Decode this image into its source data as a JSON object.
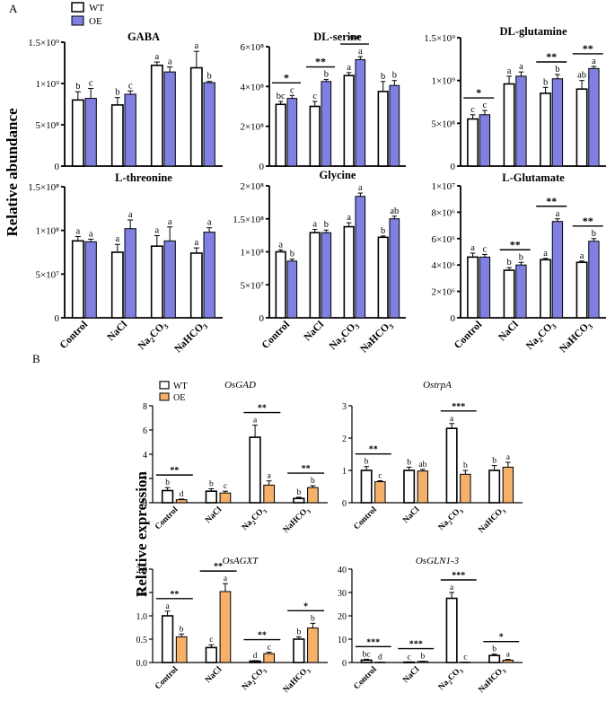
{
  "panel_labels": {
    "a": "A",
    "b": "B"
  },
  "legend_a": {
    "wt": "WT",
    "oe": "OE",
    "wt_color": "#ffffff",
    "oe_color": "#8080e0"
  },
  "legend_b": {
    "wt": "WT",
    "oe": "OE",
    "wt_color": "#ffffff",
    "oe_color": "#f5b06a"
  },
  "y_titles": {
    "panel_a": "Relative abundance",
    "panel_b": "Relative expression"
  },
  "chart_data": [
    {
      "id": "gaba",
      "type": "bar",
      "panel": "A",
      "title": "GABA",
      "categories": [
        "Control",
        "NaCl",
        "Na2CO3",
        "NaHCO3"
      ],
      "series": [
        {
          "name": "WT",
          "values": [
            800000000,
            740000000,
            1220000000,
            1190000000
          ],
          "errors": [
            100000000,
            90000000,
            40000000,
            200000000
          ]
        },
        {
          "name": "OE",
          "values": [
            820000000,
            870000000,
            1140000000,
            1010000000
          ],
          "errors": [
            120000000,
            40000000,
            60000000,
            15000000
          ]
        }
      ],
      "ylim": [
        0,
        1500000000
      ],
      "yticks": [
        0,
        500000000,
        1000000000,
        1500000000
      ],
      "yticklabels": [
        "0",
        "5×10⁸",
        "1×10⁹",
        "1.5×10⁹"
      ],
      "letters": [
        [
          "b",
          "c"
        ],
        [
          "b",
          "c"
        ],
        [
          "a",
          "a"
        ],
        [
          "a",
          "b"
        ]
      ],
      "sig": []
    },
    {
      "id": "dlserine",
      "type": "bar",
      "panel": "A",
      "title": "DL-serine",
      "categories": [
        "Control",
        "NaCl",
        "Na2CO3",
        "NaHCO3"
      ],
      "series": [
        {
          "name": "WT",
          "values": [
            310000000,
            300000000,
            455000000,
            375000000
          ],
          "errors": [
            15000000,
            25000000,
            15000000,
            50000000
          ]
        },
        {
          "name": "OE",
          "values": [
            340000000,
            425000000,
            535000000,
            405000000
          ],
          "errors": [
            15000000,
            10000000,
            15000000,
            25000000
          ]
        }
      ],
      "ylim": [
        0,
        600000000
      ],
      "yticks": [
        0,
        200000000,
        400000000,
        600000000
      ],
      "yticklabels": [
        "0",
        "2×10⁸",
        "4×10⁸",
        "6×10⁸"
      ],
      "letters": [
        [
          "bc",
          "c"
        ],
        [
          "c",
          "b"
        ],
        [
          "a",
          "a"
        ],
        [
          "b",
          "b"
        ]
      ],
      "sig": [
        [
          "*",
          0
        ],
        [
          "**",
          1
        ],
        [
          "**",
          2
        ]
      ]
    },
    {
      "id": "dlglutamine",
      "type": "bar",
      "panel": "A",
      "title": "DL-glutamine",
      "categories": [
        "Control",
        "NaCl",
        "Na2CO3",
        "NaHCO3"
      ],
      "series": [
        {
          "name": "WT",
          "values": [
            550000000,
            960000000,
            850000000,
            900000000
          ],
          "errors": [
            50000000,
            90000000,
            70000000,
            100000000
          ]
        },
        {
          "name": "OE",
          "values": [
            600000000,
            1050000000,
            1020000000,
            1140000000
          ],
          "errors": [
            50000000,
            50000000,
            50000000,
            25000000
          ]
        }
      ],
      "ylim": [
        0,
        1500000000
      ],
      "yticks": [
        0,
        500000000,
        1000000000,
        1500000000
      ],
      "yticklabels": [
        "0",
        "5×10⁸",
        "1×10⁹",
        "1.5×10⁹"
      ],
      "letters": [
        [
          "c",
          "c"
        ],
        [
          "a",
          "a"
        ],
        [
          "b",
          "b"
        ],
        [
          "ab",
          "a"
        ]
      ],
      "sig": [
        [
          "*",
          0
        ],
        [
          "**",
          2
        ],
        [
          "**",
          3
        ]
      ]
    },
    {
      "id": "lthreonine",
      "type": "bar",
      "panel": "A",
      "title": "L-threonine",
      "categories": [
        "Control",
        "NaCl",
        "Na2CO3",
        "NaHCO3"
      ],
      "series": [
        {
          "name": "WT",
          "values": [
            88000000,
            75000000,
            82000000,
            74000000
          ],
          "errors": [
            5000000,
            9000000,
            12000000,
            6000000
          ]
        },
        {
          "name": "OE",
          "values": [
            87000000,
            102000000,
            88000000,
            98000000
          ],
          "errors": [
            3000000,
            10000000,
            16000000,
            5000000
          ]
        }
      ],
      "ylim": [
        0,
        150000000
      ],
      "yticks": [
        0,
        50000000,
        100000000,
        150000000
      ],
      "yticklabels": [
        "0",
        "5×10⁷",
        "1×10⁸",
        "1.5×10⁸"
      ],
      "letters": [
        [
          "a",
          "a"
        ],
        [
          "a",
          "a"
        ],
        [
          "a",
          "a"
        ],
        [
          "a",
          "a"
        ]
      ],
      "sig": []
    },
    {
      "id": "glycine",
      "type": "bar",
      "panel": "A",
      "title": "Glycine",
      "categories": [
        "Control",
        "NaCl",
        "Na2CO3",
        "NaHCO3"
      ],
      "series": [
        {
          "name": "WT",
          "values": [
            100000000,
            129000000,
            138000000,
            122000000
          ],
          "errors": [
            3000000,
            5000000,
            6000000,
            2000000
          ]
        },
        {
          "name": "OE",
          "values": [
            86000000,
            129000000,
            184000000,
            150000000
          ],
          "errors": [
            3000000,
            4000000,
            5000000,
            4000000
          ]
        }
      ],
      "ylim": [
        0,
        200000000
      ],
      "yticks": [
        0,
        50000000,
        100000000,
        150000000,
        200000000
      ],
      "yticklabels": [
        "0",
        "5×10⁷",
        "1×10⁸",
        "1.5×10⁸",
        "2×10⁸"
      ],
      "letters": [
        [
          "a",
          "b"
        ],
        [
          "a",
          "b"
        ],
        [
          "a",
          "a"
        ],
        [
          "b",
          "ab"
        ]
      ],
      "sig": []
    },
    {
      "id": "lglutamate",
      "type": "bar",
      "panel": "A",
      "title": "L-Glutamate",
      "categories": [
        "Control",
        "NaCl",
        "Na2CO3",
        "NaHCO3"
      ],
      "series": [
        {
          "name": "WT",
          "values": [
            4600000,
            3600000,
            4400000,
            4200000
          ],
          "errors": [
            300000,
            200000,
            100000,
            100000
          ]
        },
        {
          "name": "OE",
          "values": [
            4600000,
            4000000,
            7300000,
            5800000
          ],
          "errors": [
            200000,
            200000,
            200000,
            200000
          ]
        }
      ],
      "ylim": [
        0,
        10000000
      ],
      "yticks": [
        0,
        2000000,
        4000000,
        6000000,
        8000000,
        10000000
      ],
      "yticklabels": [
        "0",
        "2×10⁶",
        "4×10⁶",
        "6×10⁶",
        "8×10⁶",
        "1×10⁷"
      ],
      "letters": [
        [
          "a",
          "c"
        ],
        [
          "b",
          "b"
        ],
        [
          "a",
          "a"
        ],
        [
          "a",
          "b"
        ]
      ],
      "sig": [
        [
          "**",
          1
        ],
        [
          "**",
          2
        ],
        [
          "**",
          3
        ]
      ]
    },
    {
      "id": "osgad",
      "type": "bar",
      "panel": "B",
      "title": "OsGAD",
      "categories": [
        "Control",
        "NaCl",
        "Na2CO3",
        "NaHCO3"
      ],
      "series": [
        {
          "name": "WT",
          "values": [
            1.0,
            0.95,
            5.4,
            0.35
          ],
          "errors": [
            0.25,
            0.2,
            1.0,
            0.1
          ]
        },
        {
          "name": "OE",
          "values": [
            0.25,
            0.8,
            1.45,
            1.25
          ],
          "errors": [
            0.05,
            0.15,
            0.35,
            0.15
          ]
        }
      ],
      "ylim": [
        0,
        8
      ],
      "yticks": [
        0,
        2,
        4,
        6,
        8
      ],
      "yticklabels": [
        "0",
        "2",
        "4",
        "6",
        "8"
      ],
      "letters": [
        [
          "b",
          "d"
        ],
        [
          "b",
          "c"
        ],
        [
          "a",
          "a"
        ],
        [
          "b",
          "b"
        ]
      ],
      "sig": [
        [
          "**",
          0
        ],
        [
          "**",
          2
        ],
        [
          "**",
          3
        ]
      ]
    },
    {
      "id": "ostrpa",
      "type": "bar",
      "panel": "B",
      "title": "OstrpA",
      "categories": [
        "Control",
        "NaCl",
        "Na2CO3",
        "NaHCO3"
      ],
      "series": [
        {
          "name": "WT",
          "values": [
            1.0,
            1.0,
            2.3,
            1.0
          ],
          "errors": [
            0.12,
            0.1,
            0.15,
            0.15
          ]
        },
        {
          "name": "OE",
          "values": [
            0.65,
            0.98,
            0.88,
            1.1
          ],
          "errors": [
            0.03,
            0.05,
            0.12,
            0.15
          ]
        }
      ],
      "ylim": [
        0,
        3
      ],
      "yticks": [
        0,
        1,
        2,
        3
      ],
      "yticklabels": [
        "0",
        "1",
        "2",
        "3"
      ],
      "letters": [
        [
          "b",
          "c"
        ],
        [
          "b",
          "ab"
        ],
        [
          "a",
          "b"
        ],
        [
          "b",
          "a"
        ]
      ],
      "sig": [
        [
          "**",
          0
        ],
        [
          "***",
          2
        ]
      ]
    },
    {
      "id": "osagxt",
      "type": "bar",
      "panel": "B",
      "title": "OsAGXT",
      "categories": [
        "Control",
        "NaCl",
        "Na2CO3",
        "NaHCO3"
      ],
      "series": [
        {
          "name": "WT",
          "values": [
            1.0,
            0.32,
            0.03,
            0.5
          ],
          "errors": [
            0.1,
            0.06,
            0.01,
            0.05
          ]
        },
        {
          "name": "OE",
          "values": [
            0.55,
            1.52,
            0.19,
            0.74
          ],
          "errors": [
            0.06,
            0.17,
            0.03,
            0.1
          ]
        }
      ],
      "ylim": [
        0,
        2.0
      ],
      "yticks": [
        0,
        0.5,
        1.0,
        1.5,
        2.0
      ],
      "yticklabels": [
        "0.0",
        "0.5",
        "1.0",
        "1.5",
        "2.0"
      ],
      "letters": [
        [
          "a",
          "b"
        ],
        [
          "c",
          "a"
        ],
        [
          "d",
          "c"
        ],
        [
          "b",
          "b"
        ]
      ],
      "sig": [
        [
          "**",
          0
        ],
        [
          "**",
          1
        ],
        [
          "**",
          2
        ],
        [
          "*",
          3
        ]
      ]
    },
    {
      "id": "osgln13",
      "type": "bar",
      "panel": "B",
      "title": "OsGLN1-3",
      "categories": [
        "Control",
        "NaCl",
        "Na2CO3",
        "NaHCO3"
      ],
      "series": [
        {
          "name": "WT",
          "values": [
            1.0,
            0.15,
            27.5,
            3.0
          ],
          "errors": [
            0.4,
            0.1,
            2.5,
            0.6
          ]
        },
        {
          "name": "OE",
          "values": [
            0.12,
            0.45,
            0.12,
            1.0
          ],
          "errors": [
            0.05,
            0.1,
            0.05,
            0.3
          ]
        }
      ],
      "ylim": [
        0,
        40
      ],
      "yticks": [
        0,
        10,
        20,
        30,
        40
      ],
      "yticklabels": [
        "0",
        "10",
        "20",
        "30",
        "40"
      ],
      "letters": [
        [
          "bc",
          "d"
        ],
        [
          "c",
          "b"
        ],
        [
          "a",
          "c"
        ],
        [
          "b",
          "a"
        ]
      ],
      "sig": [
        [
          "***",
          0
        ],
        [
          "***",
          1
        ],
        [
          "***",
          2
        ],
        [
          "*",
          3
        ]
      ]
    }
  ]
}
